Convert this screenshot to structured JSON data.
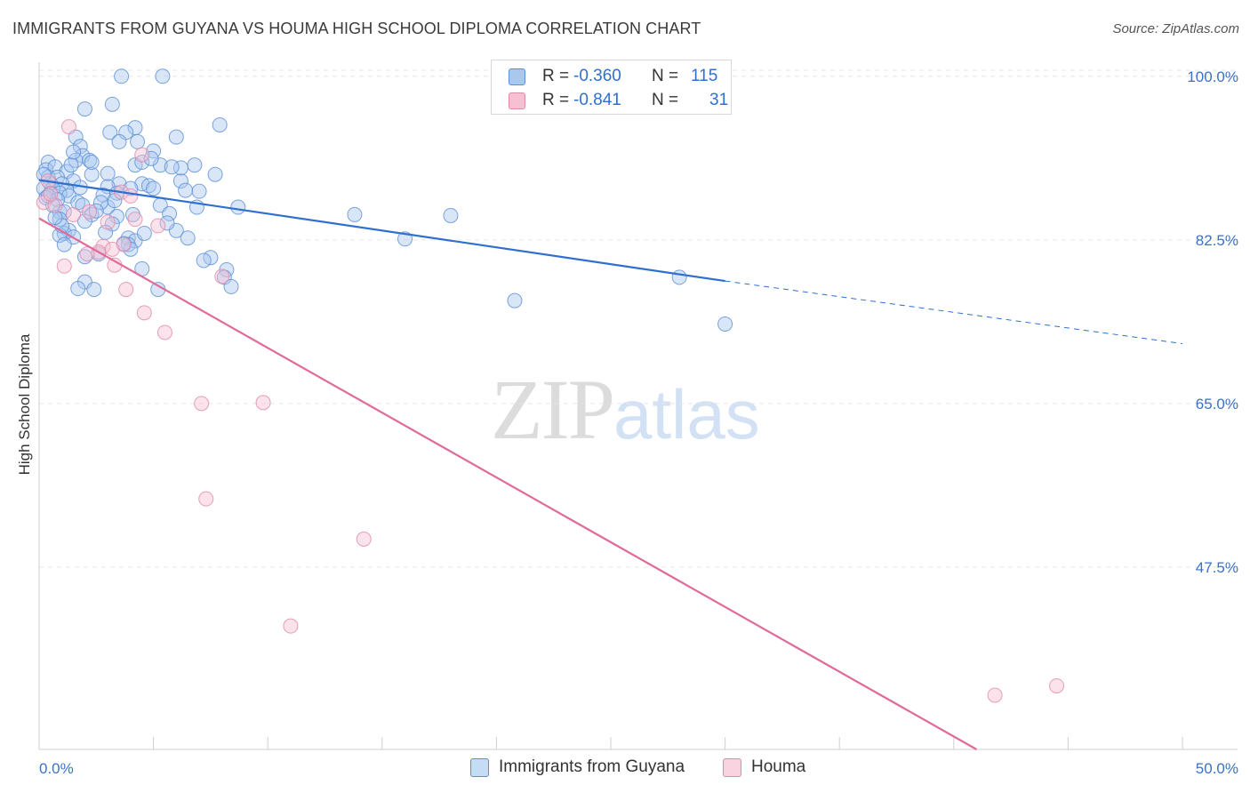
{
  "title": "IMMIGRANTS FROM GUYANA VS HOUMA HIGH SCHOOL DIPLOMA CORRELATION CHART",
  "source": "Source: ZipAtlas.com",
  "watermark": {
    "zip": "ZIP",
    "atlas": "atlas"
  },
  "legend": {
    "rows": [
      {
        "r_label": "R =",
        "r_value": "-0.360",
        "n_label": "N =",
        "n_value": "115",
        "color": "#a9c8f0",
        "border": "#5b8fd6"
      },
      {
        "r_label": "R =",
        "r_value": "-0.841",
        "n_label": "N =",
        "n_value": "31",
        "color": "#f7bfd2",
        "border": "#e08aa8"
      }
    ]
  },
  "bottom_legend": [
    {
      "label": "Immigrants from Guyana",
      "color": "#a9c8f0",
      "border": "#5b8fd6"
    },
    {
      "label": "Houma",
      "color": "#f7bfd2",
      "border": "#e08aa8"
    }
  ],
  "chart_data": {
    "type": "scatter",
    "title": "IMMIGRANTS FROM GUYANA VS HOUMA HIGH SCHOOL DIPLOMA CORRELATION CHART",
    "xlabel": "",
    "ylabel": "High School Diploma",
    "xlim": [
      0,
      50
    ],
    "ylim": [
      28,
      101.5
    ],
    "x_tick_labels": [
      "0.0%",
      "50.0%"
    ],
    "y_ticks": [
      47.5,
      65.0,
      82.5,
      100.0
    ],
    "y_tick_labels": [
      "47.5%",
      "65.0%",
      "82.5%",
      "100.0%"
    ],
    "grid": true,
    "legend_placement": "top-center",
    "series": [
      {
        "name": "Immigrants from Guyana",
        "color": "#5b8fd6",
        "fill": "#a9c8f0",
        "trend": {
          "x_start": 0,
          "y_start": 88.9,
          "x_solid_end": 30,
          "y_solid_end": 78.1,
          "x_dash_end": 50,
          "y_dash_end": 71.4
        },
        "points": [
          [
            3.6,
            100.0
          ],
          [
            5.4,
            100.0
          ],
          [
            3.2,
            97.0
          ],
          [
            2.0,
            96.5
          ],
          [
            4.2,
            94.5
          ],
          [
            3.1,
            94.0
          ],
          [
            3.8,
            94.0
          ],
          [
            7.9,
            94.8
          ],
          [
            1.6,
            93.5
          ],
          [
            3.5,
            93.0
          ],
          [
            4.3,
            93.0
          ],
          [
            6.0,
            93.5
          ],
          [
            1.8,
            92.5
          ],
          [
            5.0,
            92.0
          ],
          [
            1.9,
            91.5
          ],
          [
            1.6,
            91.0
          ],
          [
            4.2,
            90.5
          ],
          [
            5.3,
            90.5
          ],
          [
            0.4,
            90.8
          ],
          [
            2.2,
            91.0
          ],
          [
            4.5,
            90.8
          ],
          [
            6.8,
            90.5
          ],
          [
            0.3,
            90.0
          ],
          [
            0.7,
            90.3
          ],
          [
            1.2,
            89.8
          ],
          [
            2.3,
            89.5
          ],
          [
            7.7,
            89.5
          ],
          [
            0.4,
            89.2
          ],
          [
            0.8,
            89.2
          ],
          [
            1.5,
            88.8
          ],
          [
            6.2,
            88.8
          ],
          [
            0.5,
            88.5
          ],
          [
            1.0,
            88.5
          ],
          [
            3.5,
            88.5
          ],
          [
            4.5,
            88.5
          ],
          [
            0.2,
            88.0
          ],
          [
            0.6,
            88.0
          ],
          [
            1.2,
            87.8
          ],
          [
            3.0,
            88.2
          ],
          [
            4.0,
            88.0
          ],
          [
            4.8,
            88.3
          ],
          [
            5.0,
            88.0
          ],
          [
            6.4,
            87.8
          ],
          [
            0.5,
            87.5
          ],
          [
            0.9,
            87.5
          ],
          [
            1.3,
            87.2
          ],
          [
            2.8,
            87.3
          ],
          [
            3.4,
            87.5
          ],
          [
            0.3,
            87.0
          ],
          [
            0.8,
            86.8
          ],
          [
            1.7,
            86.5
          ],
          [
            1.9,
            86.2
          ],
          [
            3.0,
            86.0
          ],
          [
            5.3,
            86.2
          ],
          [
            6.9,
            86.0
          ],
          [
            8.7,
            86.0
          ],
          [
            0.9,
            85.5
          ],
          [
            1.1,
            85.5
          ],
          [
            2.3,
            85.2
          ],
          [
            3.4,
            85.0
          ],
          [
            4.1,
            85.2
          ],
          [
            5.7,
            85.3
          ],
          [
            13.8,
            85.2
          ],
          [
            18.0,
            85.1
          ],
          [
            0.9,
            84.7
          ],
          [
            2.0,
            84.5
          ],
          [
            3.2,
            84.2
          ],
          [
            1.3,
            83.5
          ],
          [
            1.1,
            83.2
          ],
          [
            2.9,
            83.3
          ],
          [
            6.0,
            83.5
          ],
          [
            0.9,
            83.0
          ],
          [
            1.5,
            82.8
          ],
          [
            3.9,
            82.7
          ],
          [
            4.2,
            82.4
          ],
          [
            6.5,
            82.7
          ],
          [
            16.0,
            82.6
          ],
          [
            1.1,
            82.0
          ],
          [
            3.9,
            82.0
          ],
          [
            4.0,
            81.5
          ],
          [
            2.6,
            81.0
          ],
          [
            2.0,
            80.7
          ],
          [
            7.5,
            80.6
          ],
          [
            7.2,
            80.3
          ],
          [
            4.5,
            79.4
          ],
          [
            8.2,
            79.3
          ],
          [
            2.0,
            78.0
          ],
          [
            8.1,
            78.5
          ],
          [
            28.0,
            78.5
          ],
          [
            1.7,
            77.3
          ],
          [
            2.4,
            77.2
          ],
          [
            5.2,
            77.2
          ],
          [
            8.4,
            77.5
          ],
          [
            20.8,
            76.0
          ],
          [
            30.0,
            73.5
          ],
          [
            3.0,
            89.6
          ],
          [
            1.4,
            90.5
          ],
          [
            2.7,
            86.5
          ],
          [
            0.6,
            86.2
          ],
          [
            1.0,
            84.0
          ],
          [
            2.5,
            85.6
          ],
          [
            4.9,
            91.2
          ],
          [
            3.7,
            82.1
          ],
          [
            5.6,
            84.3
          ],
          [
            0.2,
            89.5
          ],
          [
            0.4,
            87.2
          ],
          [
            1.8,
            88.1
          ],
          [
            6.2,
            90.2
          ],
          [
            3.3,
            86.7
          ],
          [
            4.6,
            83.2
          ],
          [
            2.3,
            90.8
          ],
          [
            0.7,
            84.9
          ],
          [
            1.5,
            91.9
          ],
          [
            5.8,
            90.3
          ],
          [
            7.0,
            87.7
          ]
        ]
      },
      {
        "name": "Houma",
        "color": "#e08aa8",
        "fill": "#f7bfd2",
        "trend": {
          "x_start": 0,
          "y_start": 84.8,
          "x_end": 41.0,
          "y_end": 28.0
        },
        "points": [
          [
            1.3,
            94.6
          ],
          [
            4.5,
            91.6
          ],
          [
            0.4,
            88.8
          ],
          [
            3.6,
            87.6
          ],
          [
            0.2,
            86.5
          ],
          [
            0.7,
            86.2
          ],
          [
            2.2,
            85.5
          ],
          [
            1.5,
            85.2
          ],
          [
            4.2,
            84.7
          ],
          [
            5.2,
            84.0
          ],
          [
            3.0,
            84.4
          ],
          [
            3.7,
            82.0
          ],
          [
            2.8,
            81.8
          ],
          [
            3.2,
            81.5
          ],
          [
            2.6,
            81.2
          ],
          [
            2.1,
            81.0
          ],
          [
            3.3,
            79.8
          ],
          [
            1.1,
            79.7
          ],
          [
            8.0,
            78.6
          ],
          [
            3.8,
            77.2
          ],
          [
            4.6,
            74.7
          ],
          [
            5.5,
            72.6
          ],
          [
            7.1,
            65.0
          ],
          [
            9.8,
            65.1
          ],
          [
            7.3,
            54.8
          ],
          [
            14.2,
            50.5
          ],
          [
            11.0,
            41.2
          ],
          [
            41.8,
            33.8
          ],
          [
            44.5,
            34.8
          ],
          [
            0.5,
            87.4
          ],
          [
            4.0,
            87.2
          ]
        ]
      }
    ]
  }
}
